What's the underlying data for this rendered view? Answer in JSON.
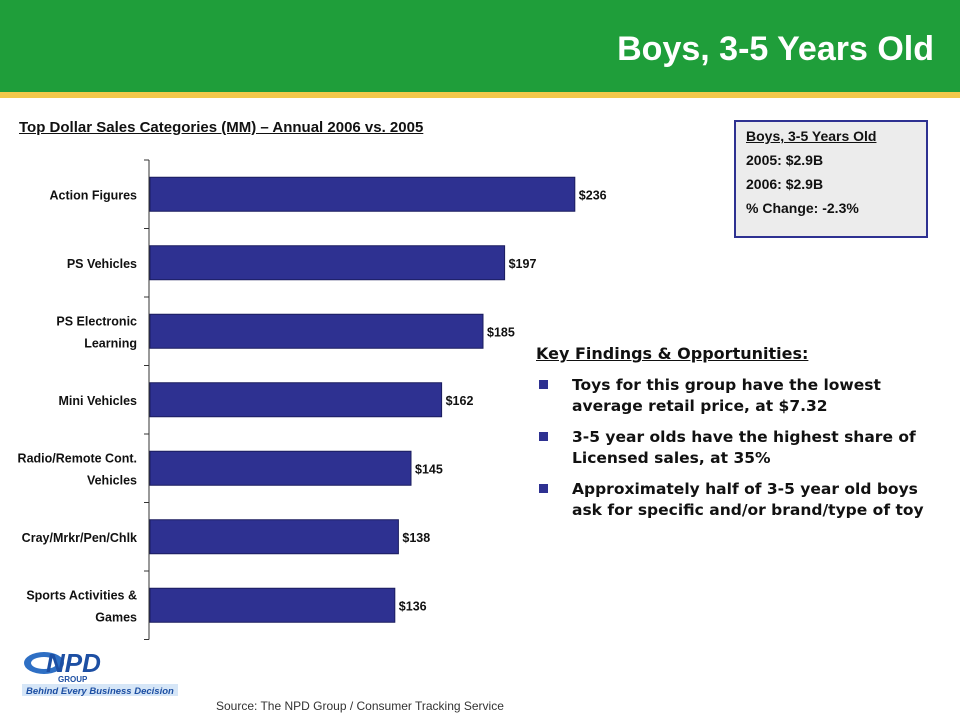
{
  "header": {
    "title": "Boys, 3-5 Years Old"
  },
  "chart_data": {
    "type": "bar",
    "orientation": "horizontal",
    "title": "Top Dollar Sales Categories (MM) – Annual 2006 vs. 2005",
    "categories": [
      [
        "Action Figures"
      ],
      [
        "PS Vehicles"
      ],
      [
        "PS Electronic",
        "Learning"
      ],
      [
        "Mini Vehicles"
      ],
      [
        "Radio/Remote Cont.",
        "Vehicles"
      ],
      [
        "Cray/Mrkr/Pen/Chlk"
      ],
      [
        "Sports Activities &",
        "Games"
      ]
    ],
    "values": [
      236,
      197,
      185,
      162,
      145,
      138,
      136
    ],
    "labels": [
      "$236",
      "$197",
      "$185",
      "$162",
      "$145",
      "$138",
      "$136"
    ],
    "bar_color": "#2e3191",
    "xlim": [
      0,
      250
    ],
    "grid": false
  },
  "summary_box": {
    "title": "Boys, 3-5 Years Old",
    "lines": [
      "2005: $2.9B",
      "2006: $2.9B",
      "% Change: -2.3%"
    ]
  },
  "findings": {
    "heading": "Key Findings & Opportunities:",
    "items": [
      "Toys for this group have the lowest average retail price, at $7.32",
      "3-5 year olds have the highest share of Licensed sales, at 35%",
      "Approximately half of 3-5 year old boys ask for specific and/or brand/type of toy"
    ]
  },
  "logo": {
    "name": "NPD",
    "sub": "GROUP",
    "tagline": "Behind Every Business Decision"
  },
  "footer": {
    "source": "Source:  The NPD Group / Consumer Tracking Service"
  },
  "colors": {
    "header": "#1f9e3a",
    "stripe": "#f2c84b",
    "accent": "#2e3191"
  }
}
